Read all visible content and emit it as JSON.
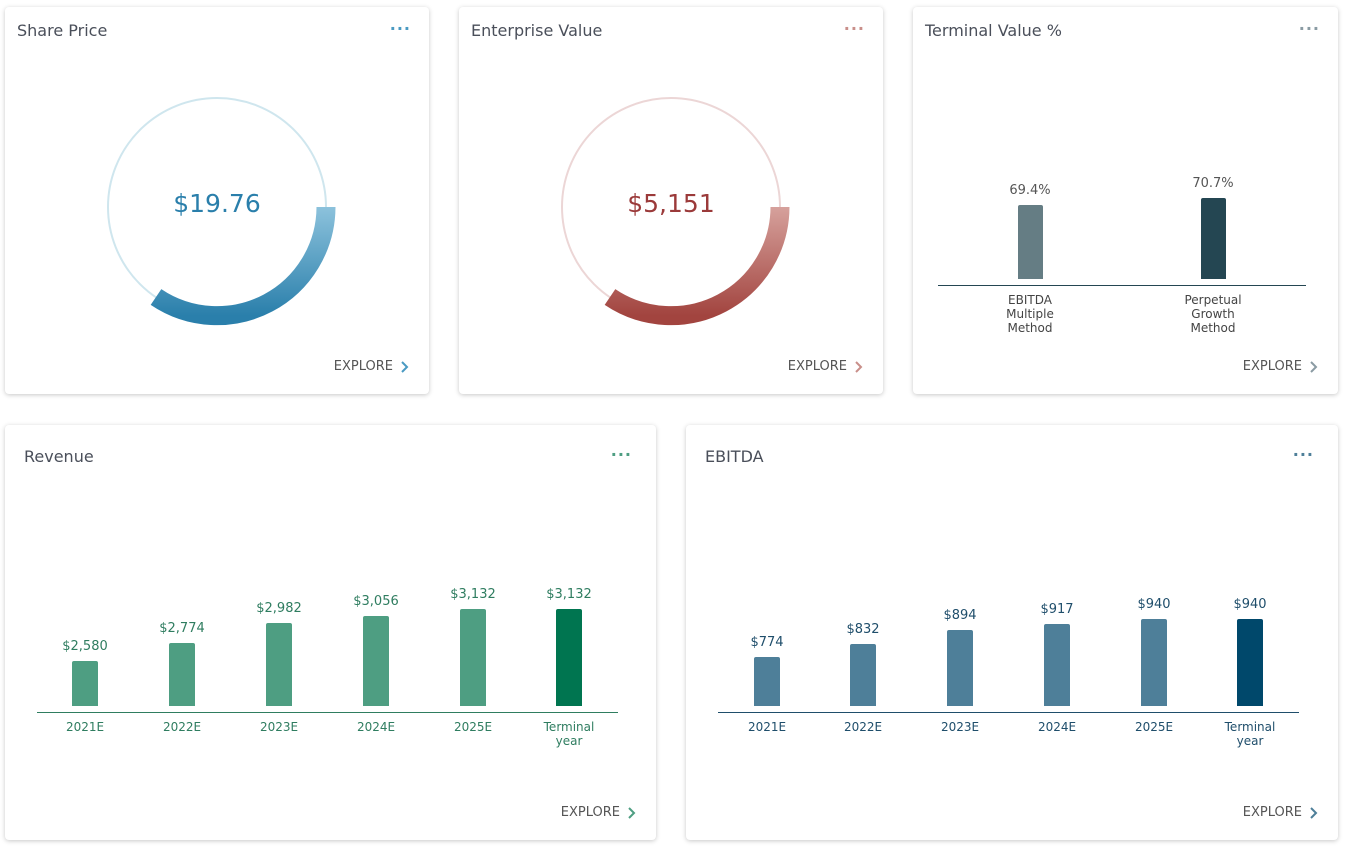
{
  "cards": [
    {
      "title": "Share Price",
      "display": "$19.76",
      "action": "EXPLORE"
    },
    {
      "title": "Enterprise Value",
      "display": "$5,151",
      "action": "EXPLORE"
    },
    {
      "title": "Terminal Value %",
      "action": "EXPLORE",
      "chart_data": {
        "type": "bar",
        "categories": [
          "EBITDA Multiple Method",
          "Perpetual Growth Method"
        ],
        "values": [
          69.4,
          70.7
        ],
        "value_labels": [
          "69.4%",
          "70.7%"
        ],
        "colors": [
          "#657d84",
          "#244652"
        ],
        "ylim": [
          56,
          73
        ]
      }
    },
    {
      "title": "Revenue",
      "action": "EXPLORE",
      "chart_data": {
        "type": "bar",
        "categories": [
          "2021E",
          "2022E",
          "2023E",
          "2024E",
          "2025E",
          "Terminal year"
        ],
        "values": [
          2580,
          2774,
          2982,
          3056,
          3132,
          3132
        ],
        "value_labels": [
          "$2,580",
          "$2,774",
          "$2,982",
          "$3,056",
          "$3,132",
          "$3,132"
        ],
        "colors": [
          "#4e9e82",
          "#4e9e82",
          "#4e9e82",
          "#4e9e82",
          "#4e9e82",
          "#007550"
        ],
        "ylim": [
          2100,
          3800
        ]
      }
    },
    {
      "title": "EBITDA",
      "action": "EXPLORE",
      "chart_data": {
        "type": "bar",
        "categories": [
          "2021E",
          "2022E",
          "2023E",
          "2024E",
          "2025E",
          "Terminal year"
        ],
        "values": [
          774,
          832,
          894,
          917,
          940,
          940
        ],
        "value_labels": [
          "$774",
          "$832",
          "$894",
          "$917",
          "$940",
          "$940"
        ],
        "colors": [
          "#4e7f99",
          "#4e7f99",
          "#4e7f99",
          "#4e7f99",
          "#4e7f99",
          "#00486b"
        ],
        "ylim": [
          560,
          1260
        ]
      }
    }
  ]
}
